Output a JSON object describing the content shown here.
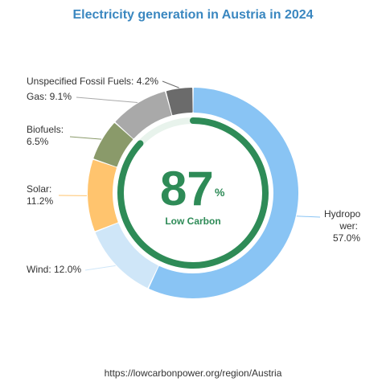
{
  "title": "Electricity generation in Austria in 2024",
  "source": "https://lowcarbonpower.org/region/Austria",
  "center": {
    "value": "87",
    "unit": "%",
    "label": "Low Carbon"
  },
  "labels": {
    "hydropower": [
      "Hydropo",
      "wer:",
      "57.0%"
    ],
    "wind": "Wind: 12.0%",
    "solar": [
      "Solar:",
      "11.2%"
    ],
    "biofuels": [
      "Biofuels:",
      "6.5%"
    ],
    "gas": "Gas: 9.1%",
    "fossil": "Unspecified Fossil Fuels: 4.2%"
  },
  "chart_data": {
    "type": "pie",
    "title": "Electricity generation in Austria in 2024",
    "categories": [
      "Hydropower",
      "Wind",
      "Solar",
      "Biofuels",
      "Gas",
      "Unspecified Fossil Fuels"
    ],
    "values": [
      57.0,
      12.0,
      11.2,
      6.5,
      9.1,
      4.2
    ],
    "colors": [
      "#89c4f4",
      "#cfe6f8",
      "#ffc46e",
      "#8a9a6a",
      "#a9a9a9",
      "#6b6b6b"
    ],
    "low_carbon_percent": 87
  }
}
